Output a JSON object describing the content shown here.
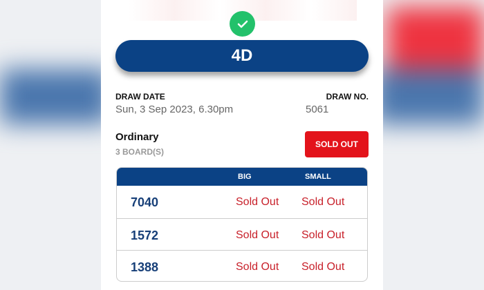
{
  "header": {
    "game_title": "4D",
    "success_icon": "check-icon"
  },
  "draw": {
    "date_label": "DRAW DATE",
    "date_value": "Sun, 3 Sep 2023, 6.30pm",
    "no_label": "DRAW NO.",
    "no_value": "5061"
  },
  "bet": {
    "type": "Ordinary",
    "boards": "3 BOARD(S)",
    "status_button": "SOLD OUT"
  },
  "table": {
    "columns": [
      "",
      "BIG",
      "SMALL"
    ],
    "rows": [
      {
        "number": "7040",
        "big": "Sold Out",
        "small": "Sold Out"
      },
      {
        "number": "1572",
        "big": "Sold Out",
        "small": "Sold Out"
      },
      {
        "number": "1388",
        "big": "Sold Out",
        "small": "Sold Out"
      }
    ]
  },
  "colors": {
    "brand_blue": "#0b4285",
    "sold_red": "#e3131b",
    "success_green": "#23c16b"
  }
}
